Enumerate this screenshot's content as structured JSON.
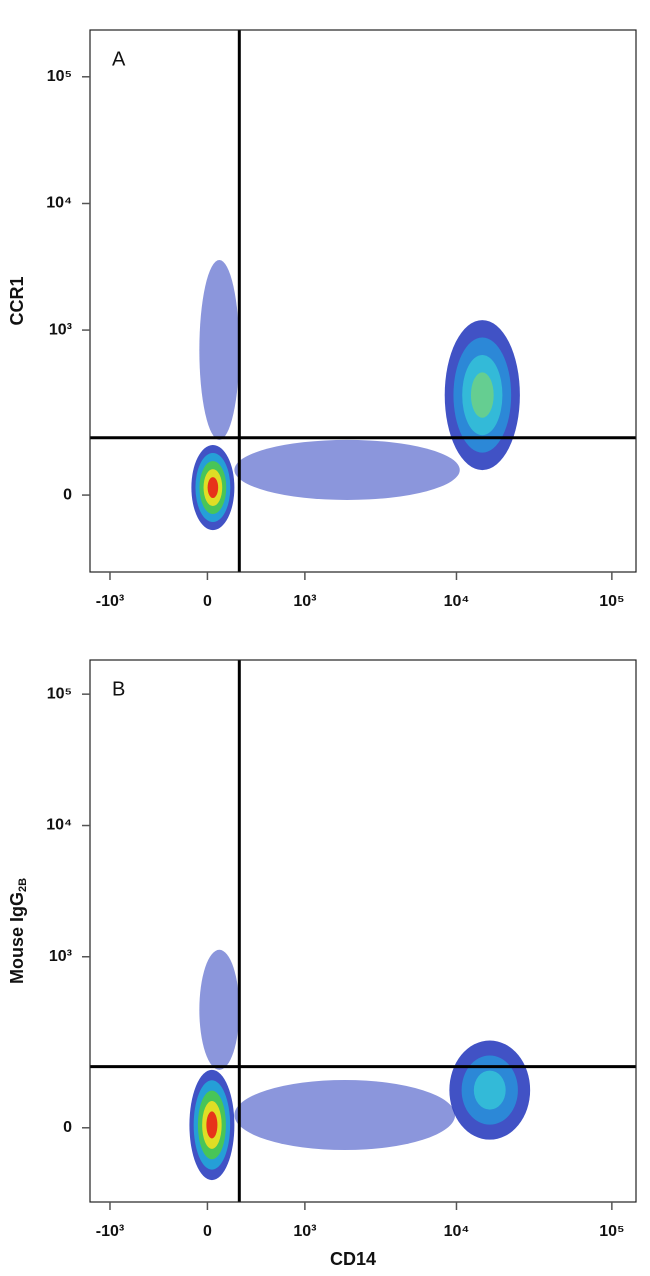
{
  "chart_data": [
    {
      "type": "density",
      "panel_label": "A",
      "y_label": {
        "text": "CCR1"
      },
      "xscale": "biexponential",
      "yscale": "biexponential",
      "xlim": [
        -1380,
        143000
      ],
      "ylim": [
        -190,
        234000
      ],
      "xticks": [
        {
          "value": -1000,
          "label": "-10³"
        },
        0,
        {
          "value": 1000,
          "label": "10³"
        },
        {
          "value": 10000,
          "label": "10⁴"
        },
        {
          "value": 100000,
          "label": "10⁵"
        }
      ],
      "yticks": [
        0,
        {
          "value": 1000,
          "label": "10³"
        },
        {
          "value": 10000,
          "label": "10⁴"
        },
        {
          "value": 100000,
          "label": "10⁵"
        }
      ],
      "gates": {
        "x": 245,
        "y": 124
      },
      "populations": [
        {
          "x_range": [
            -60,
            245
          ],
          "y_range": [
            118,
            3580
          ],
          "colors": [
            "#2c3fbf"
          ]
        },
        {
          "x_range": [
            205,
            10500
          ],
          "y_range": [
            -9,
            118
          ],
          "colors": [
            "#2c3fbf"
          ]
        },
        {
          "x_range": [
            8400,
            25600
          ],
          "y_range": [
            47,
            1200
          ],
          "colors": [
            "#2c3fbf",
            "#2a8ed8",
            "#34c0d8",
            "#6ad08a"
          ]
        },
        {
          "x_range": [
            -120,
            205
          ],
          "y_range": [
            -68,
            104
          ],
          "colors": [
            "#2c3fbf",
            "#22a7d8",
            "#4cc94a",
            "#f0e020",
            "#e8201a"
          ]
        }
      ]
    },
    {
      "type": "density",
      "panel_label": "B",
      "x_label": "CD14",
      "y_label": {
        "text": "Mouse IgG",
        "subscript": "2B"
      },
      "xscale": "biexponential",
      "yscale": "biexponential",
      "xlim": [
        -1380,
        143000
      ],
      "ylim": [
        -170,
        182000
      ],
      "xticks": [
        {
          "value": -1000,
          "label": "-10³"
        },
        0,
        {
          "value": 1000,
          "label": "10³"
        },
        {
          "value": 10000,
          "label": "10⁴"
        },
        {
          "value": 100000,
          "label": "10⁵"
        }
      ],
      "yticks": [
        0,
        {
          "value": 1000,
          "label": "10³"
        },
        {
          "value": 10000,
          "label": "10⁴"
        },
        {
          "value": 100000,
          "label": "10⁵"
        }
      ],
      "gates": {
        "x": 245,
        "y": 129
      },
      "populations": [
        {
          "x_range": [
            -60,
            245
          ],
          "y_range": [
            120,
            1130
          ],
          "colors": [
            "#2c3fbf"
          ]
        },
        {
          "x_range": [
            205,
            9800
          ],
          "y_range": [
            -40,
            94
          ],
          "colors": [
            "#2c3fbf"
          ]
        },
        {
          "x_range": [
            9000,
            29800
          ],
          "y_range": [
            -21,
            220
          ],
          "colors": [
            "#2c3fbf",
            "#2a8ed8",
            "#34c0d8"
          ]
        },
        {
          "x_range": [
            -135,
            205
          ],
          "y_range": [
            -105,
            120
          ],
          "colors": [
            "#2c3fbf",
            "#22a7d8",
            "#4cc94a",
            "#f0e020",
            "#e8201a"
          ]
        }
      ]
    }
  ]
}
